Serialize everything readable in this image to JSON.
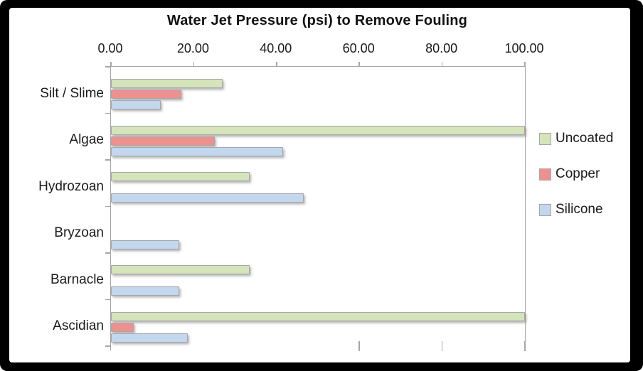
{
  "chart_data": {
    "type": "bar",
    "orientation": "horizontal",
    "title": "Water Jet Pressure (psi) to Remove Fouling",
    "categories": [
      "Silt / Slime",
      "Algae",
      "Hydrozoan",
      "Bryzoan",
      "Barnacle",
      "Ascidian"
    ],
    "series": [
      {
        "name": "Uncoated",
        "color": "#d6e4bc",
        "values": [
          27,
          100,
          33.5,
          0,
          33.5,
          100
        ]
      },
      {
        "name": "Copper",
        "color": "#ed918f",
        "values": [
          17,
          25,
          0,
          0,
          0,
          5.5
        ]
      },
      {
        "name": "Silicone",
        "color": "#c3d7ee",
        "values": [
          12,
          41.5,
          46.5,
          16.5,
          16.5,
          18.5
        ]
      }
    ],
    "xlim": [
      0,
      100
    ],
    "x_tick_values": [
      0,
      20,
      40,
      60,
      80,
      100
    ],
    "x_tick_labels": [
      "0.00",
      "20.00",
      "40.00",
      "60.00",
      "80.00",
      "100.00"
    ],
    "bottom_tick_values": [
      60,
      80,
      100
    ],
    "x_axis_position": "top",
    "legend_position": "right",
    "grid": false
  },
  "colors": {
    "axis": "#a6a6a6",
    "frame": "#000000",
    "background": "#ffffff",
    "text": "#1a1a1a"
  }
}
